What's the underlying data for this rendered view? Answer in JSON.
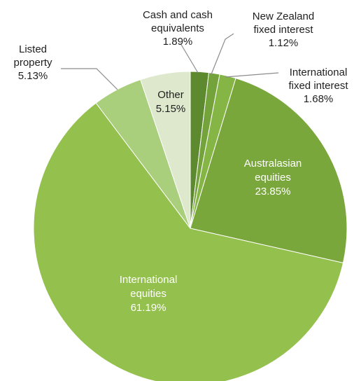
{
  "chart_data": {
    "type": "pie",
    "start_angle_deg": 0,
    "direction": "clockwise",
    "slices": [
      {
        "name_lines": [
          "Cash and cash",
          "equivalents"
        ],
        "value": 1.89,
        "label": "1.89%",
        "color": "#5d8a2e",
        "label_position": "outside"
      },
      {
        "name_lines": [
          "New Zealand",
          "fixed interest"
        ],
        "value": 1.12,
        "label": "1.12%",
        "color": "#74a33b",
        "label_position": "outside"
      },
      {
        "name_lines": [
          "International",
          "fixed interest"
        ],
        "value": 1.68,
        "label": "1.68%",
        "color": "#85b545",
        "label_position": "outside"
      },
      {
        "name_lines": [
          "Australasian",
          "equities"
        ],
        "value": 23.85,
        "label": "23.85%",
        "color": "#7aa73c",
        "label_position": "inside"
      },
      {
        "name_lines": [
          "International",
          "equities"
        ],
        "value": 61.19,
        "label": "61.19%",
        "color": "#94c04d",
        "label_position": "inside"
      },
      {
        "name_lines": [
          "Listed",
          "property"
        ],
        "value": 5.13,
        "label": "5.13%",
        "color": "#a9cf7c",
        "label_position": "outside"
      },
      {
        "name_lines": [
          "Other"
        ],
        "value": 5.15,
        "label": "5.15%",
        "color": "#dde8cc",
        "label_position": "inside"
      }
    ]
  }
}
